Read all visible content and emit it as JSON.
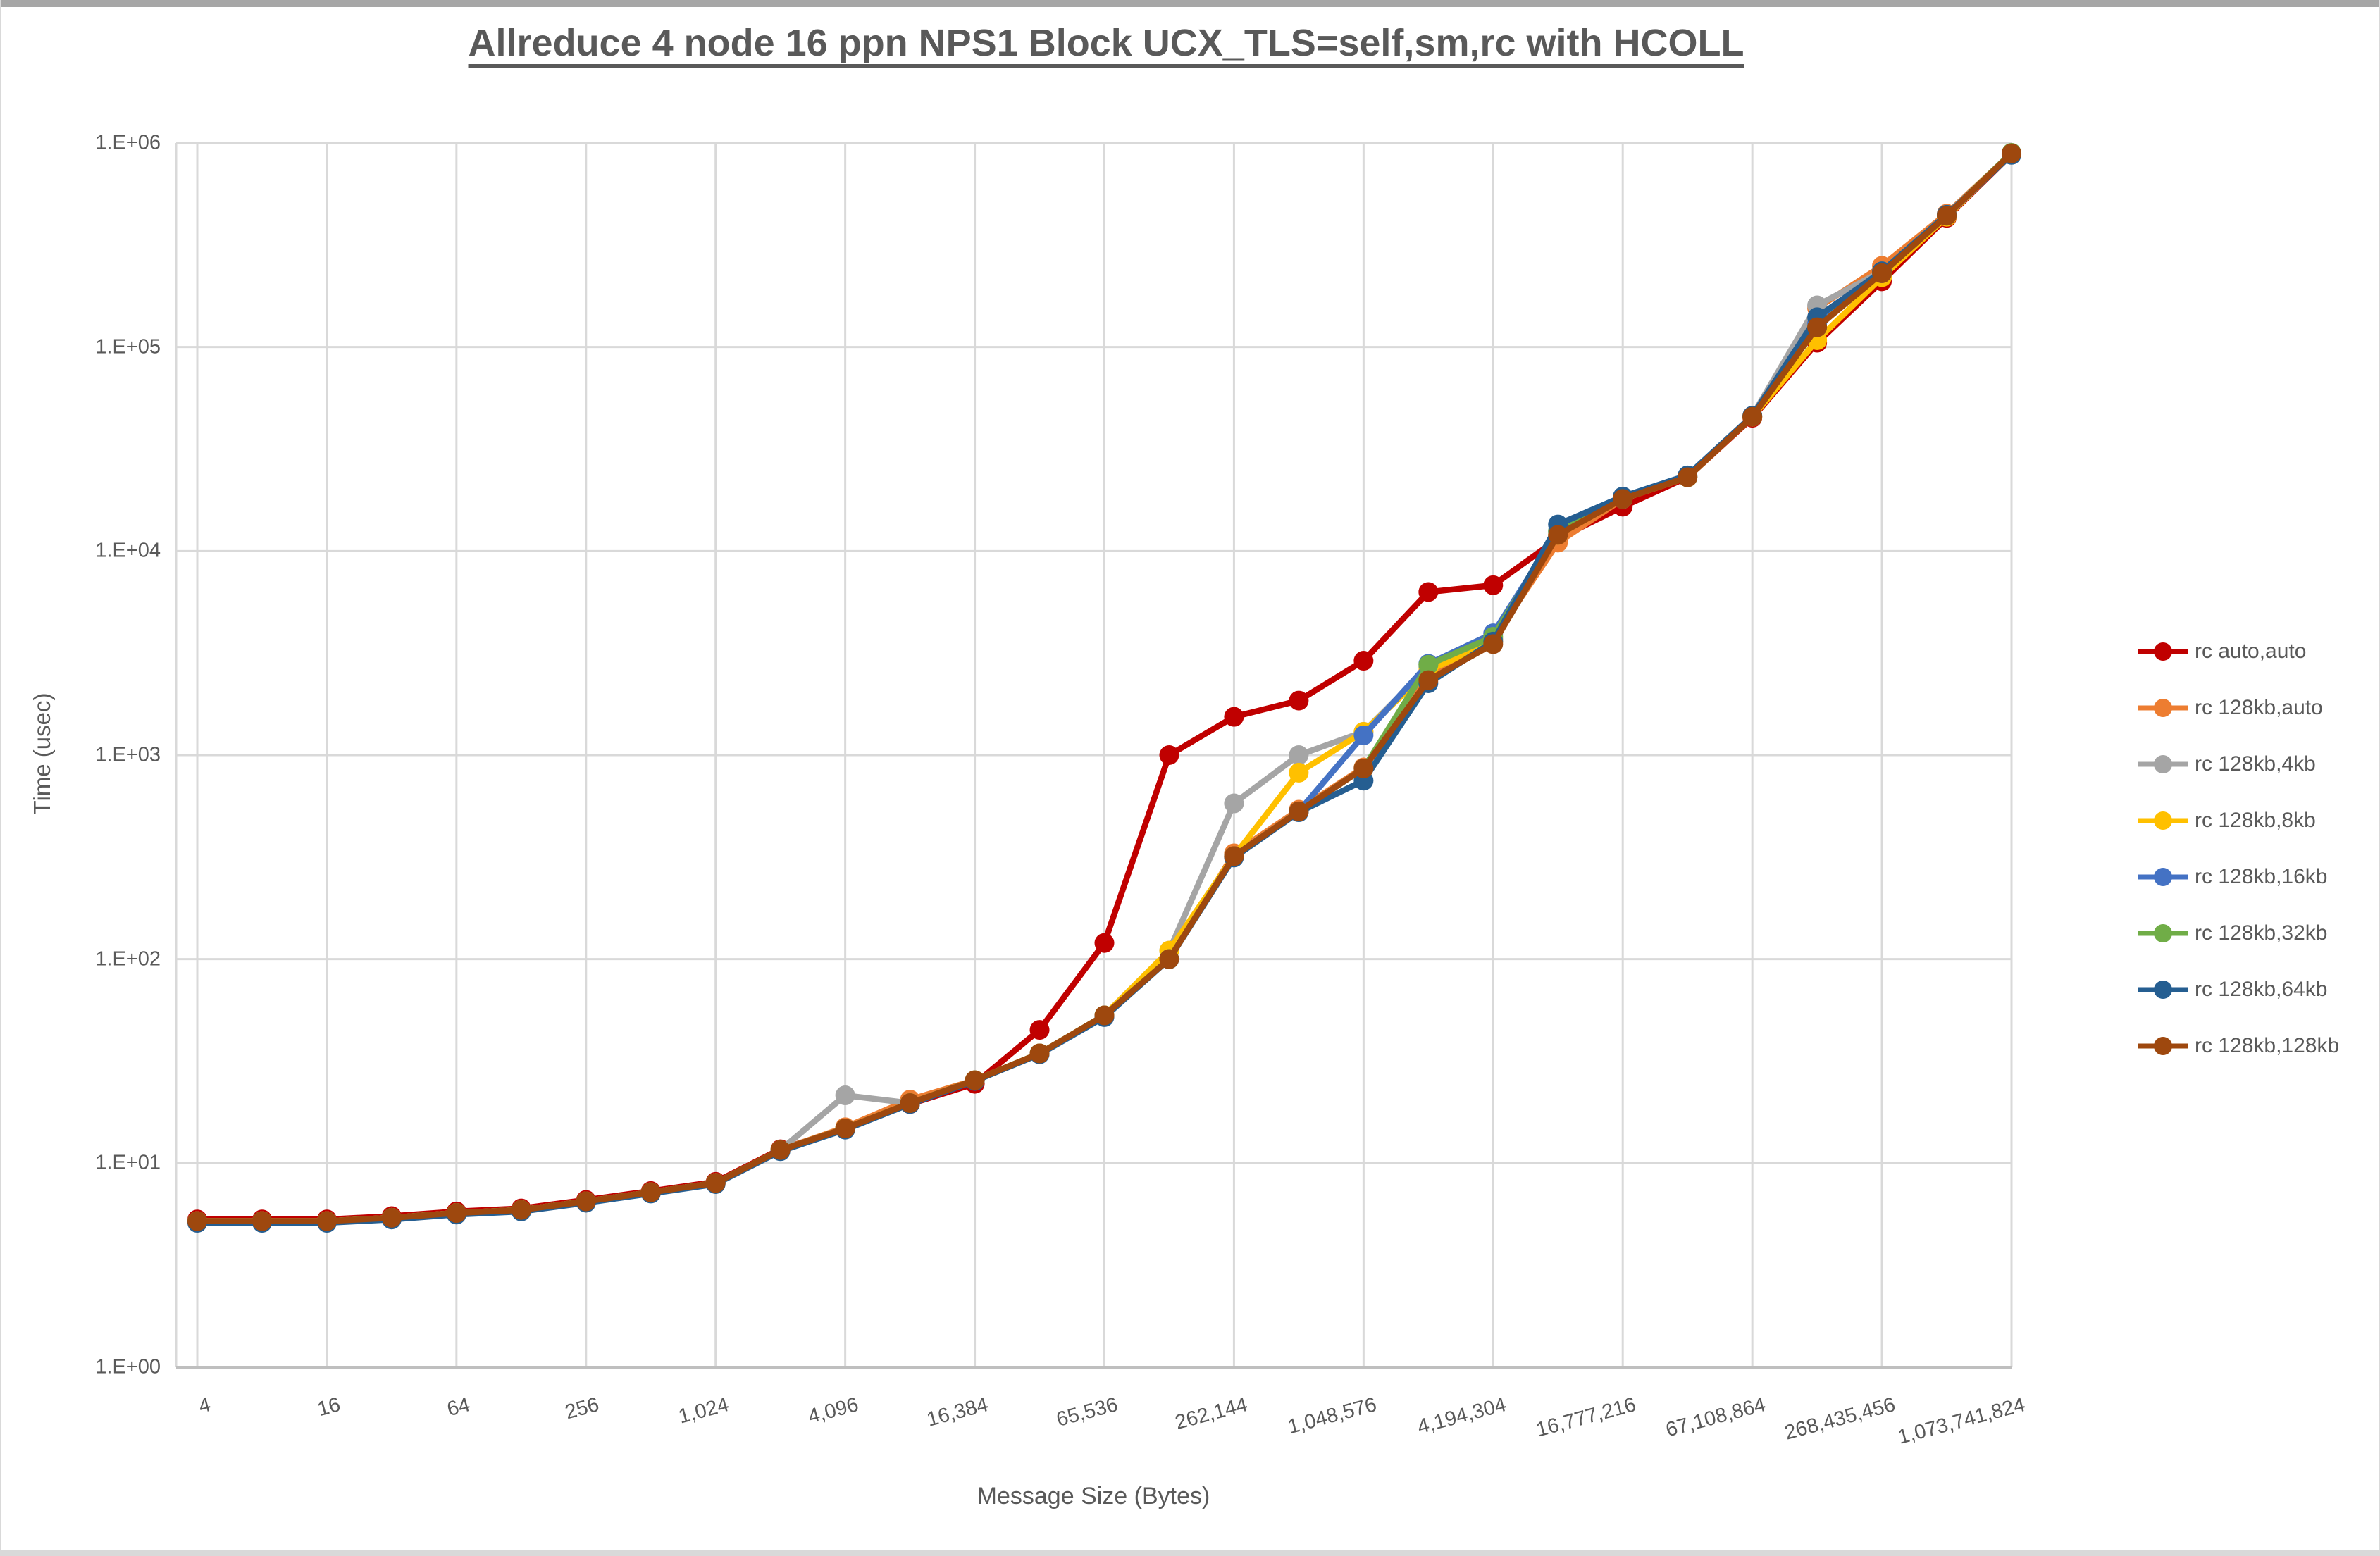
{
  "window": {
    "top_bar_color": "#a6a6a6",
    "bottom_bar_color": "#d9d9d9"
  },
  "chart_data": {
    "type": "line",
    "title": "Allreduce 4 node 16 ppn NPS1 Block UCX_TLS=self,sm,rc with HCOLL",
    "xlabel": "Message Size (Bytes)",
    "ylabel": "Time (usec)",
    "x_scale": "log-categorical (message size doubles each point)",
    "y_scale": "log",
    "ylim": [
      1,
      1000000
    ],
    "grid": true,
    "legend_position": "right",
    "y_tick_labels": [
      "1.E+00",
      "1.E+01",
      "1.E+02",
      "1.E+03",
      "1.E+04",
      "1.E+05",
      "1.E+06"
    ],
    "x_categories": [
      4,
      8,
      16,
      32,
      64,
      128,
      256,
      512,
      1024,
      2048,
      4096,
      8192,
      16384,
      32768,
      65536,
      131072,
      262144,
      524288,
      1048576,
      2097152,
      4194304,
      8388608,
      16777216,
      33554432,
      67108864,
      134217728,
      268435456,
      536870912,
      1073741824
    ],
    "x_tick_labels_shown": [
      "4",
      "16",
      "64",
      "256",
      "1,024",
      "4,096",
      "16,384",
      "65,536",
      "262,144",
      "1,048,576",
      "4,194,304",
      "16,777,216",
      "67,108,864",
      "268,435,456",
      "1,073,741,824"
    ],
    "colors": {
      "accent_red": "#C00000",
      "accent_orange": "#ED7D31",
      "accent_gray": "#A5A5A5",
      "accent_gold": "#FFC000",
      "accent_blue": "#4472C4",
      "accent_green": "#70AD47",
      "accent_darkblue": "#255E91",
      "accent_brown": "#9E480E",
      "gridline": "#D9D9D9",
      "axis_line": "#BFBFBF",
      "text": "#595959"
    },
    "series": [
      {
        "name": "rc auto,auto",
        "color": "#C00000",
        "values": [
          5.3,
          5.3,
          5.3,
          5.5,
          5.8,
          6.0,
          6.6,
          7.3,
          8.1,
          11.7,
          14.8,
          19.5,
          24.5,
          45,
          120,
          1000,
          1540,
          1850,
          2900,
          6300,
          6800,
          11500,
          16500,
          23000,
          45000,
          105000,
          210000,
          430000,
          880000
        ]
      },
      {
        "name": "rc 128kb,auto",
        "color": "#ED7D31",
        "values": [
          5.2,
          5.2,
          5.2,
          5.4,
          5.7,
          5.9,
          6.5,
          7.2,
          8.0,
          11.6,
          15.0,
          20.5,
          25.5,
          34.5,
          53,
          100,
          330,
          540,
          870,
          2400,
          3700,
          11000,
          18000,
          23000,
          45500,
          155000,
          250000,
          450000,
          890000
        ]
      },
      {
        "name": "rc 128kb,4kb",
        "color": "#A5A5A5",
        "values": [
          5.2,
          5.2,
          5.2,
          5.4,
          5.7,
          5.9,
          6.5,
          7.2,
          8.0,
          11.6,
          21.5,
          19.7,
          25.5,
          34.5,
          53,
          110,
          580,
          1000,
          1300,
          2700,
          3700,
          12000,
          18500,
          23000,
          46000,
          160000,
          235000,
          445000,
          890000
        ]
      },
      {
        "name": "rc 128kb,8kb",
        "color": "#FFC000",
        "values": [
          5.2,
          5.2,
          5.2,
          5.4,
          5.7,
          5.9,
          6.5,
          7.2,
          8.0,
          11.6,
          14.8,
          19.7,
          25.5,
          34.5,
          53,
          110,
          320,
          820,
          1300,
          2600,
          3600,
          12000,
          18000,
          23000,
          45500,
          108000,
          220000,
          435000,
          885000
        ]
      },
      {
        "name": "rc 128kb,16kb",
        "color": "#4472C4",
        "values": [
          5.15,
          5.15,
          5.15,
          5.35,
          5.65,
          5.85,
          6.45,
          7.15,
          7.95,
          11.5,
          14.7,
          19.6,
          25.4,
          34.3,
          52.5,
          100,
          320,
          530,
          1250,
          2800,
          3950,
          12500,
          18000,
          23200,
          46000,
          130000,
          230000,
          440000,
          880000
        ]
      },
      {
        "name": "rc 128kb,32kb",
        "color": "#70AD47",
        "values": [
          5.2,
          5.2,
          5.2,
          5.4,
          5.7,
          5.9,
          6.5,
          7.2,
          8.0,
          11.6,
          14.8,
          19.7,
          25.5,
          34.5,
          53,
          100,
          320,
          530,
          860,
          2770,
          3800,
          12500,
          18200,
          23000,
          45800,
          125000,
          232000,
          442000,
          895000
        ]
      },
      {
        "name": "rc 128kb,64kb",
        "color": "#255E91",
        "values": [
          5.1,
          5.1,
          5.1,
          5.3,
          5.6,
          5.8,
          6.4,
          7.1,
          7.9,
          11.45,
          14.6,
          19.5,
          25.3,
          34.2,
          52,
          100,
          315,
          525,
          750,
          2250,
          3600,
          13500,
          18500,
          23500,
          46000,
          140000,
          235000,
          445000,
          875000
        ]
      },
      {
        "name": "rc 128kb,128kb",
        "color": "#9E480E",
        "values": [
          5.2,
          5.2,
          5.2,
          5.4,
          5.7,
          5.9,
          6.5,
          7.2,
          8.0,
          11.6,
          14.8,
          19.7,
          25.5,
          34.5,
          53,
          100,
          320,
          530,
          860,
          2330,
          3500,
          12000,
          18000,
          23000,
          45500,
          125000,
          230000,
          440000,
          890000
        ]
      }
    ]
  }
}
